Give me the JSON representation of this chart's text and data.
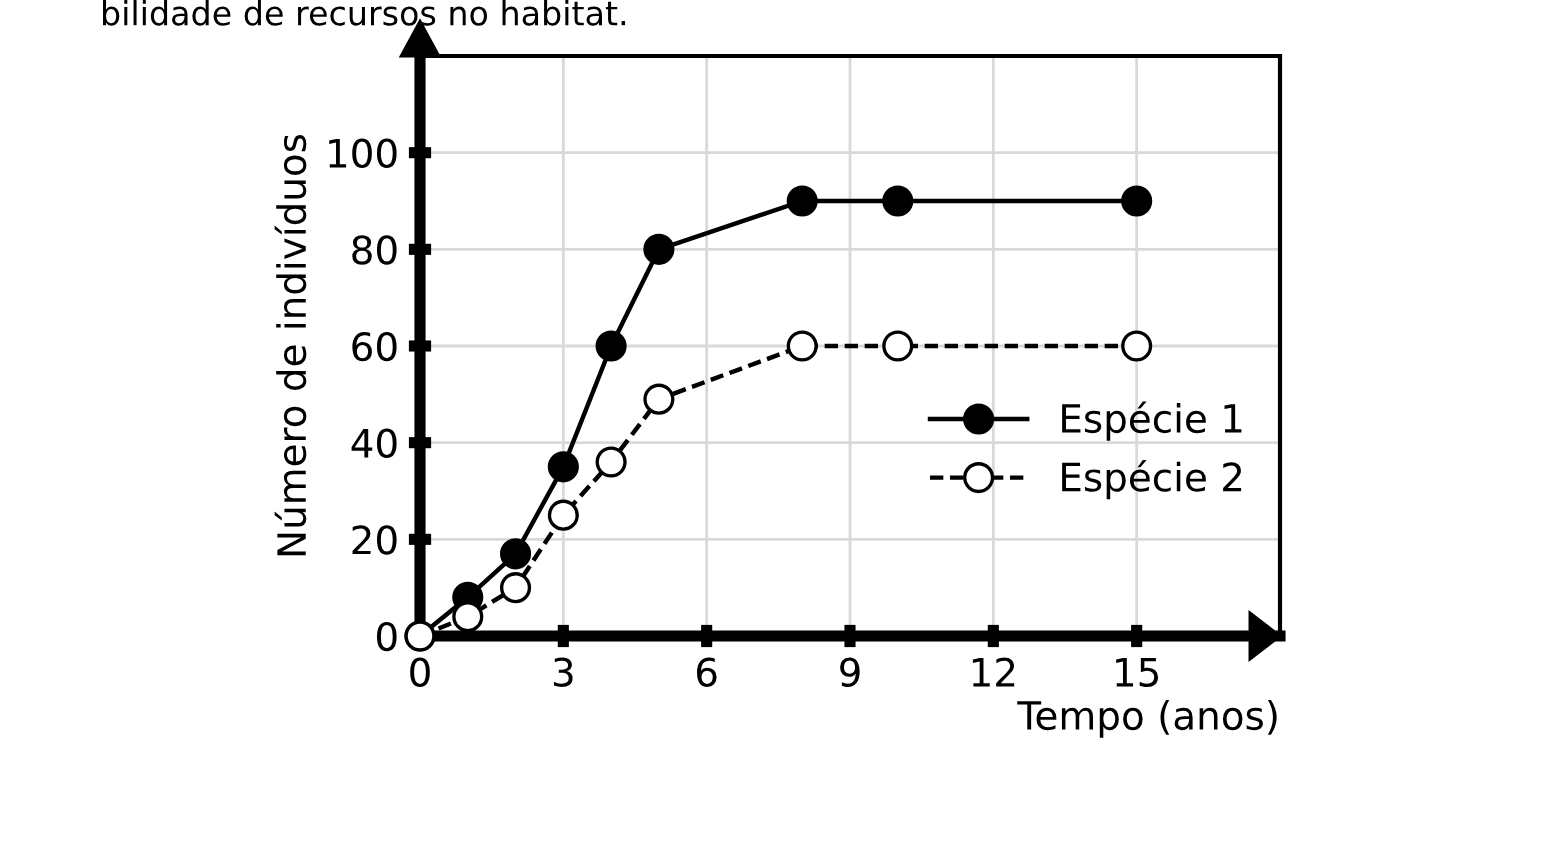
{
  "chart_data": {
    "type": "line",
    "annotations": [
      "bilidade de recursos no habitat."
    ],
    "xlabel": "Tempo (anos)",
    "ylabel": "Número de indivíduos",
    "x": [
      0,
      1,
      2,
      3,
      4,
      5,
      8,
      10,
      15
    ],
    "series": [
      {
        "name": "Espécie 1",
        "color": "#000000",
        "values": [
          0,
          8,
          17,
          35,
          60,
          80,
          90,
          90,
          90
        ],
        "marker": "circle",
        "line_style": "solid"
      },
      {
        "name": "Espécie 2",
        "color": "#000000",
        "values": [
          0,
          4,
          10,
          25,
          36,
          49,
          60,
          60,
          60
        ],
        "marker": "circle",
        "line_style": "dashed"
      }
    ],
    "xlim": [
      0,
      18
    ],
    "ylim": [
      0,
      120
    ],
    "xticks": [
      0,
      3,
      6,
      9,
      12,
      15
    ],
    "yticks": [
      0,
      20,
      40,
      60,
      80,
      100
    ],
    "grid": true,
    "legend": "right"
  }
}
